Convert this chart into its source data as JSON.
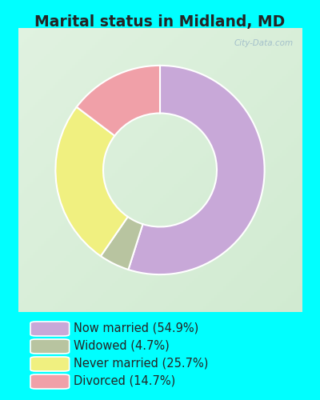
{
  "title": "Marital status in Midland, MD",
  "slices": [
    54.9,
    4.7,
    25.7,
    14.7
  ],
  "labels": [
    "Now married (54.9%)",
    "Widowed (4.7%)",
    "Never married (25.7%)",
    "Divorced (14.7%)"
  ],
  "colors": [
    "#c8a8d8",
    "#b8c4a0",
    "#f0f080",
    "#f0a0a8"
  ],
  "title_color": "#252525",
  "title_fontsize": 13.5,
  "legend_fontsize": 10.5,
  "watermark": "City-Data.com",
  "start_angle": 90,
  "cyan_border": "#00ffff",
  "chart_box_color": "#d8ede0",
  "legend_bg": "#00ffff"
}
